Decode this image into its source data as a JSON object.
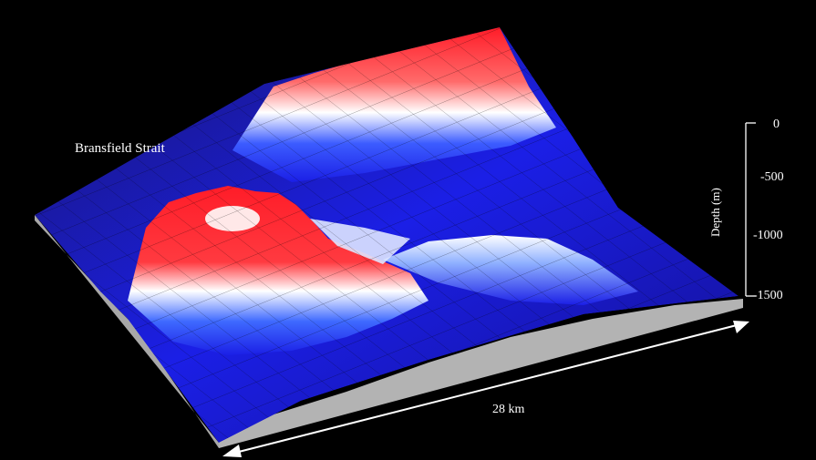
{
  "location_label": "Bransfield Strait",
  "depth_axis": {
    "label": "Depth (m)",
    "ticks": [
      "0",
      "-500",
      "-1000",
      "-1500"
    ]
  },
  "scale_bar": {
    "label": "28 km"
  },
  "colors": {
    "background": "#000000",
    "shallow": "#ff1c28",
    "mid": "#ffffff",
    "deep": "#1b1fe6",
    "deepest": "#1a1670",
    "side_wall": "#b3b3b3",
    "axis": "#ffffff"
  }
}
